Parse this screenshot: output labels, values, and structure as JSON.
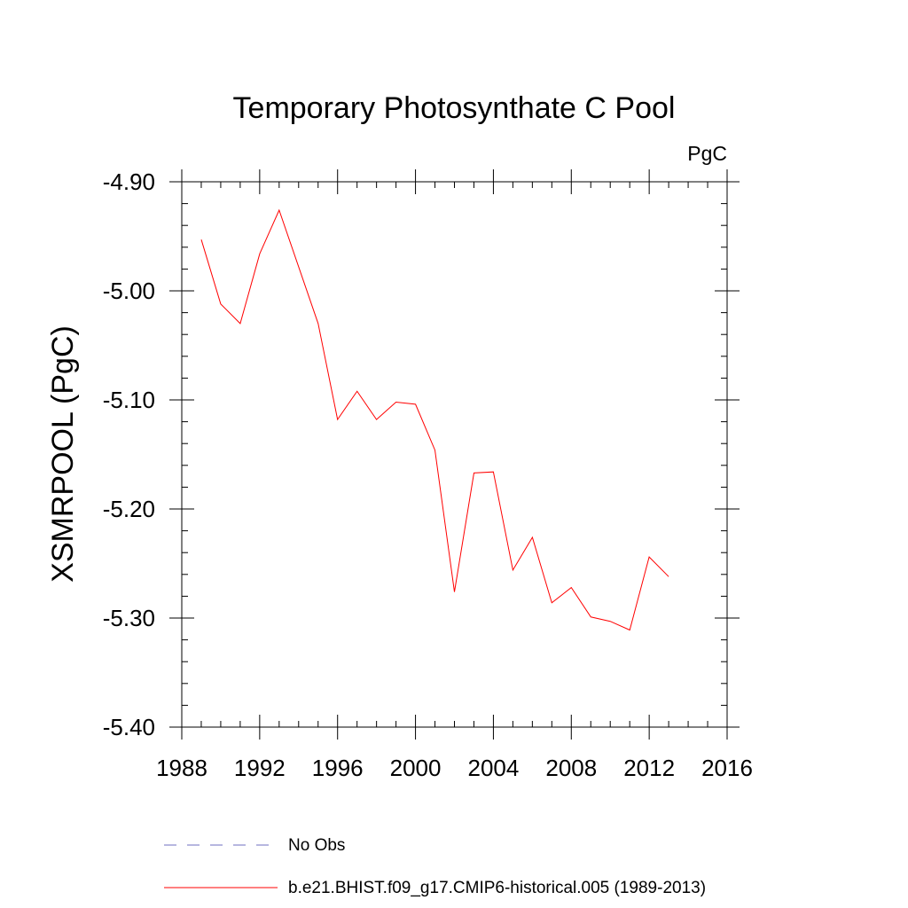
{
  "chart_data": {
    "type": "line",
    "title": "Temporary Photosynthate C Pool",
    "units_label": "PgC",
    "xlabel": "",
    "ylabel": "XSMRPOOL  (PgC)",
    "xlim": [
      1988,
      2016
    ],
    "ylim": [
      -5.4,
      -4.9
    ],
    "x_ticks": [
      1988,
      1992,
      1996,
      2000,
      2004,
      2008,
      2012,
      2016
    ],
    "x_tick_labels": [
      "1988",
      "1992",
      "1996",
      "2000",
      "2004",
      "2008",
      "2012",
      "2016"
    ],
    "y_ticks": [
      -4.9,
      -5.0,
      -5.1,
      -5.2,
      -5.3,
      -5.4
    ],
    "y_tick_labels": [
      "-4.90",
      "-5.00",
      "-5.10",
      "-5.20",
      "-5.30",
      "-5.40"
    ],
    "grid": false,
    "legend_position": "bottom",
    "series": [
      {
        "name": "b.e21.BHIST.f09_g17.CMIP6-historical.005 (1989-2013)",
        "color": "#ff0000",
        "dash": "solid",
        "x": [
          1989,
          1990,
          1991,
          1992,
          1993,
          1994,
          1995,
          1996,
          1997,
          1998,
          1999,
          2000,
          2001,
          2002,
          2003,
          2004,
          2005,
          2006,
          2007,
          2008,
          2009,
          2010,
          2011,
          2012,
          2013
        ],
        "values": [
          -4.953,
          -5.012,
          -5.03,
          -4.966,
          -4.926,
          -4.978,
          -5.03,
          -5.118,
          -5.092,
          -5.118,
          -5.102,
          -5.104,
          -5.146,
          -5.276,
          -5.167,
          -5.166,
          -5.256,
          -5.226,
          -5.286,
          -5.272,
          -5.299,
          -5.303,
          -5.311,
          -5.244,
          -5.262
        ]
      }
    ],
    "legend": [
      {
        "label": "No Obs",
        "color": "#6f6fc0",
        "dash": "dashed"
      },
      {
        "label": "b.e21.BHIST.f09_g17.CMIP6-historical.005 (1989-2013)",
        "color": "#ff0000",
        "dash": "solid"
      }
    ]
  }
}
